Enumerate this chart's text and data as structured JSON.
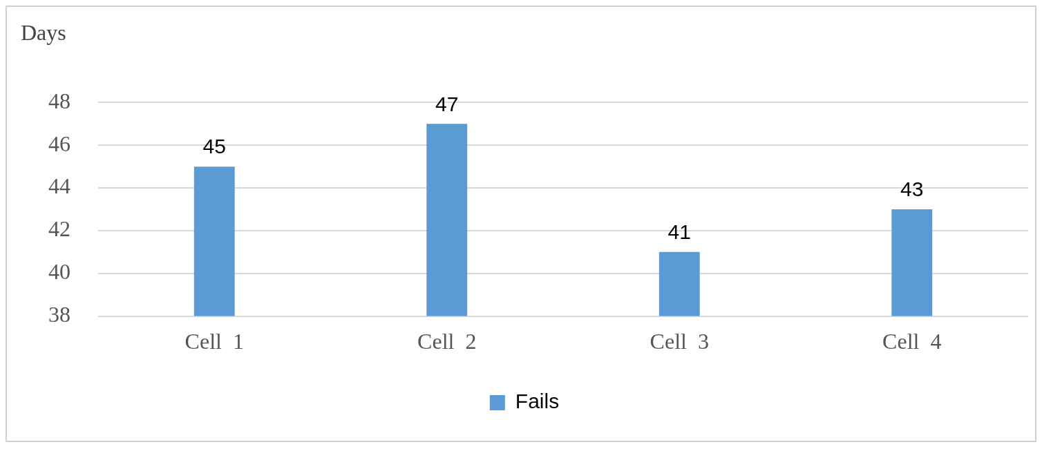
{
  "chart_data": {
    "type": "bar",
    "ylabel": "Days",
    "categories": [
      "Cell  1",
      "Cell  2",
      "Cell  3",
      "Cell  4"
    ],
    "series": [
      {
        "name": "Fails",
        "color": "#5b9bd5",
        "values": [
          45,
          47,
          41,
          43
        ]
      }
    ],
    "ylim": [
      38,
      48
    ],
    "yticks": [
      38,
      40,
      42,
      44,
      46,
      48
    ],
    "grid": "y",
    "legend": "bottom",
    "data_labels": true
  }
}
